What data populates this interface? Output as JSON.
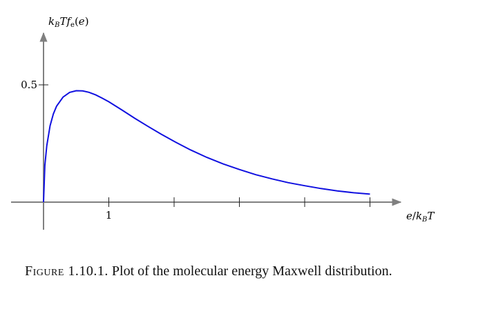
{
  "chart_data": {
    "type": "line",
    "ylabel": "k_B T f_e(e)",
    "xlabel": "e/k_B T",
    "x_ticks": [
      1,
      2,
      3,
      4,
      5
    ],
    "x_tick_labels": [
      "1",
      "",
      "",
      "",
      ""
    ],
    "y_ticks": [
      0.5
    ],
    "y_tick_labels": [
      "0.5"
    ],
    "xlim": [
      -0.5,
      5.5
    ],
    "ylim": [
      -0.12,
      0.75
    ],
    "grid": false,
    "series": [
      {
        "color": "#1010e0",
        "x": [
          0,
          0.02,
          0.05,
          0.1,
          0.15,
          0.2,
          0.3,
          0.4,
          0.5,
          0.6,
          0.7,
          0.8,
          0.9,
          1.0,
          1.2,
          1.4,
          1.6,
          1.8,
          2.0,
          2.25,
          2.5,
          2.75,
          3.0,
          3.25,
          3.5,
          3.75,
          4.0,
          4.25,
          4.5,
          4.75,
          5.0
        ],
        "y": [
          0,
          0.156,
          0.24,
          0.326,
          0.376,
          0.409,
          0.448,
          0.468,
          0.475,
          0.474,
          0.468,
          0.457,
          0.443,
          0.428,
          0.393,
          0.357,
          0.323,
          0.29,
          0.259,
          0.223,
          0.191,
          0.163,
          0.139,
          0.117,
          0.099,
          0.083,
          0.07,
          0.058,
          0.048,
          0.04,
          0.034
        ]
      }
    ]
  },
  "caption": {
    "label": "Figure 1.10.1.",
    "text": "Plot of the molecular energy Maxwell distribution."
  }
}
